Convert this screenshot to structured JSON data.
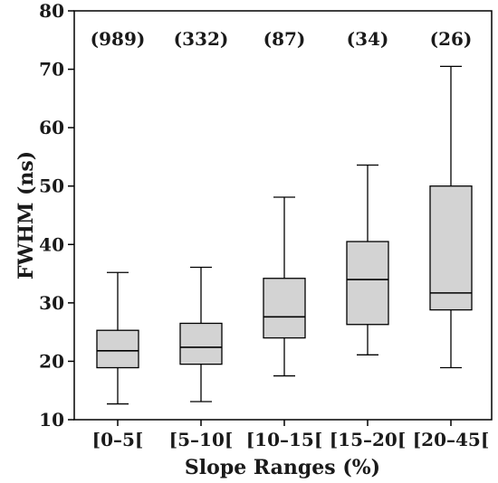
{
  "chart_data": {
    "type": "box",
    "xlabel": "Slope Ranges (%)",
    "ylabel": "FWHM (ns)",
    "ylim": [
      10,
      80
    ],
    "yticks": [
      10,
      20,
      30,
      40,
      50,
      60,
      70,
      80
    ],
    "grid": false,
    "legend": "none",
    "box_fill": "#d3d3d3",
    "stroke": "#000000",
    "categories": [
      "[0–5[",
      "[5–10[",
      "[10–15[",
      "[15–20[",
      "[20–45["
    ],
    "counts": [
      "(989)",
      "(332)",
      "(87)",
      "(34)",
      "(26)"
    ],
    "boxes": [
      {
        "whisker_low": 12.7,
        "q1": 18.9,
        "median": 21.8,
        "q3": 25.3,
        "whisker_high": 35.2
      },
      {
        "whisker_low": 13.1,
        "q1": 19.5,
        "median": 22.4,
        "q3": 26.5,
        "whisker_high": 36.1
      },
      {
        "whisker_low": 17.5,
        "q1": 24.0,
        "median": 27.6,
        "q3": 34.2,
        "whisker_high": 48.1
      },
      {
        "whisker_low": 21.1,
        "q1": 26.3,
        "median": 34.0,
        "q3": 40.5,
        "whisker_high": 53.6
      },
      {
        "whisker_low": 18.9,
        "q1": 28.8,
        "median": 31.7,
        "q3": 50.0,
        "whisker_high": 70.5
      }
    ]
  }
}
